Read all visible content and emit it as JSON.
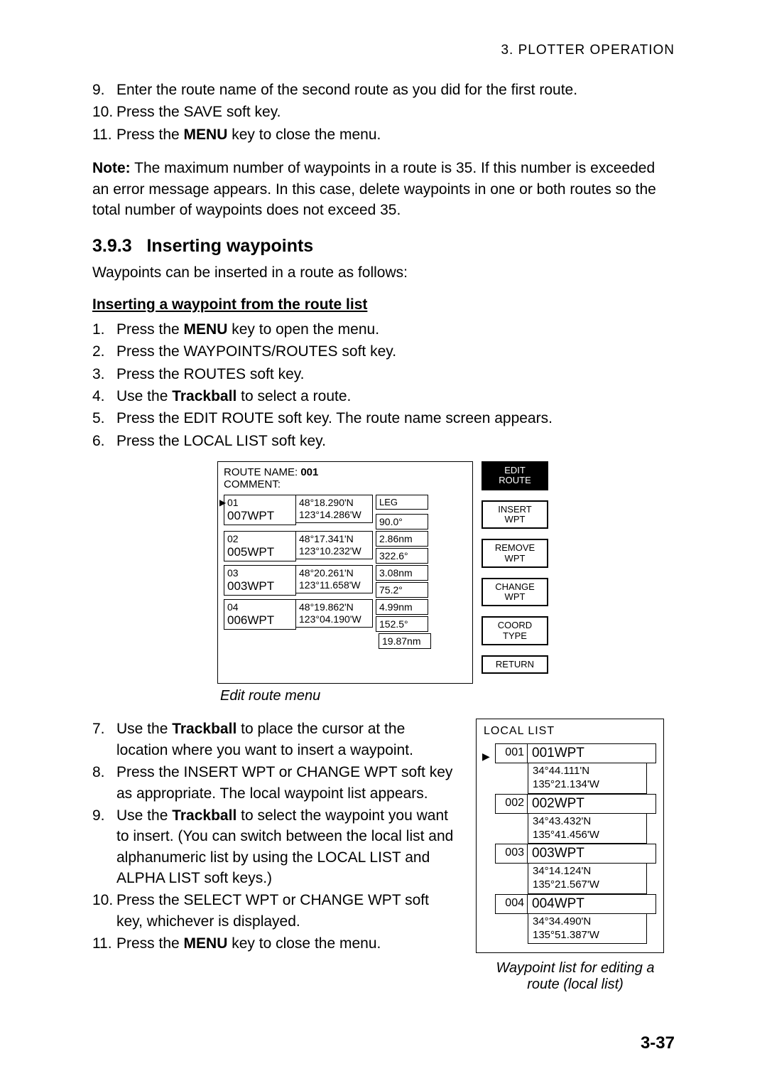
{
  "header": {
    "chapter": "3.  PLOTTER  OPERATION"
  },
  "intro_steps": [
    {
      "n": "9.",
      "t": "Enter the route name of the second route as you did for the first route."
    },
    {
      "n": "10.",
      "t_before": "Press the SAVE soft key.",
      "t_bold": "",
      "t_after": ""
    },
    {
      "n": "11.",
      "t_before": "Press the ",
      "t_bold": "MENU",
      "t_after": " key to close the menu."
    }
  ],
  "note": {
    "label": "Note:",
    "text": " The maximum number of waypoints in a route is 35. If this number is exceeded an error message appears. In this case, delete waypoints in one or both routes so the total number of waypoints does not exceed 35."
  },
  "section": {
    "num": "3.9.3",
    "title": "Inserting waypoints"
  },
  "section_intro": "Waypoints can be inserted in a route as follows:",
  "sub1": "Inserting a waypoint from the route list",
  "steps1": [
    {
      "n": "1.",
      "pre": "Press the ",
      "b": "MENU",
      "post": " key to open the menu."
    },
    {
      "n": "2.",
      "pre": "Press the WAYPOINTS/ROUTES soft key.",
      "b": "",
      "post": ""
    },
    {
      "n": "3.",
      "pre": "Press the ROUTES soft key.",
      "b": "",
      "post": ""
    },
    {
      "n": "4.",
      "pre": "Use the ",
      "b": "Trackball",
      "post": " to select a route."
    },
    {
      "n": "5.",
      "pre": "Press the EDIT ROUTE soft key. The route name screen appears.",
      "b": "",
      "post": ""
    },
    {
      "n": "6.",
      "pre": "Press the LOCAL LIST soft key.",
      "b": "",
      "post": ""
    }
  ],
  "route_menu": {
    "name_label": "ROUTE NAME: ",
    "name_value": "001",
    "comment_label": "COMMENT:",
    "leg_header": "LEG",
    "rows": [
      {
        "idx": "01",
        "wpt": "007WPT",
        "lat": "48°18.290'N",
        "lon": "123°14.286'W"
      },
      {
        "idx": "02",
        "wpt": "005WPT",
        "lat": "48°17.341'N",
        "lon": "123°10.232'W"
      },
      {
        "idx": "03",
        "wpt": "003WPT",
        "lat": "48°20.261'N",
        "lon": "123°11.658'W"
      },
      {
        "idx": "04",
        "wpt": "006WPT",
        "lat": "48°19.862'N",
        "lon": "123°04.190'W"
      }
    ],
    "legs": [
      "90.0°",
      "2.86nm",
      "322.6°",
      "3.08nm",
      "75.2°",
      "4.99nm",
      "152.5°",
      "19.87nm"
    ],
    "softkeys": [
      {
        "l1": "EDIT",
        "l2": "ROUTE",
        "dark": true
      },
      {
        "l1": "INSERT",
        "l2": "WPT",
        "dark": false
      },
      {
        "l1": "REMOVE",
        "l2": "WPT",
        "dark": false
      },
      {
        "l1": "CHANGE",
        "l2": "WPT",
        "dark": false
      },
      {
        "l1": "COORD",
        "l2": "TYPE",
        "dark": false
      },
      {
        "l1": "RETURN",
        "l2": "",
        "dark": false
      }
    ],
    "caption": "Edit route menu"
  },
  "steps2": [
    {
      "n": "7.",
      "pre": "Use the ",
      "b": "Trackball",
      "post": " to place the cursor at the location where you want to insert a waypoint."
    },
    {
      "n": "8.",
      "pre": "Press the INSERT WPT or CHANGE WPT soft key as appropriate. The local waypoint list appears.",
      "b": "",
      "post": ""
    },
    {
      "n": "9.",
      "pre": "Use the ",
      "b": "Trackball",
      "post": " to select the waypoint you want to insert. (You can switch between the local list and alphanumeric list by using the LOCAL LIST and ALPHA LIST soft keys.)"
    },
    {
      "n": "10.",
      "pre": "Press the SELECT WPT or CHANGE WPT soft key, whichever is displayed.",
      "b": "",
      "post": ""
    },
    {
      "n": "11.",
      "pre": "Press the ",
      "b": "MENU",
      "post": " key to close the menu."
    }
  ],
  "local_list": {
    "title": "LOCAL LIST",
    "rows": [
      {
        "idx": "001",
        "name": "001WPT",
        "lat": "34°44.111'N",
        "lon": "135°21.134'W"
      },
      {
        "idx": "002",
        "name": "002WPT",
        "lat": "34°43.432'N",
        "lon": "135°41.456'W"
      },
      {
        "idx": "003",
        "name": "003WPT",
        "lat": "34°14.124'N",
        "lon": "135°21.567'W"
      },
      {
        "idx": "004",
        "name": "004WPT",
        "lat": "34°34.490'N",
        "lon": "135°51.387'W"
      }
    ],
    "caption1": "Waypoint list for editing a",
    "caption2": "route (local list)"
  },
  "page_number": "3-37"
}
